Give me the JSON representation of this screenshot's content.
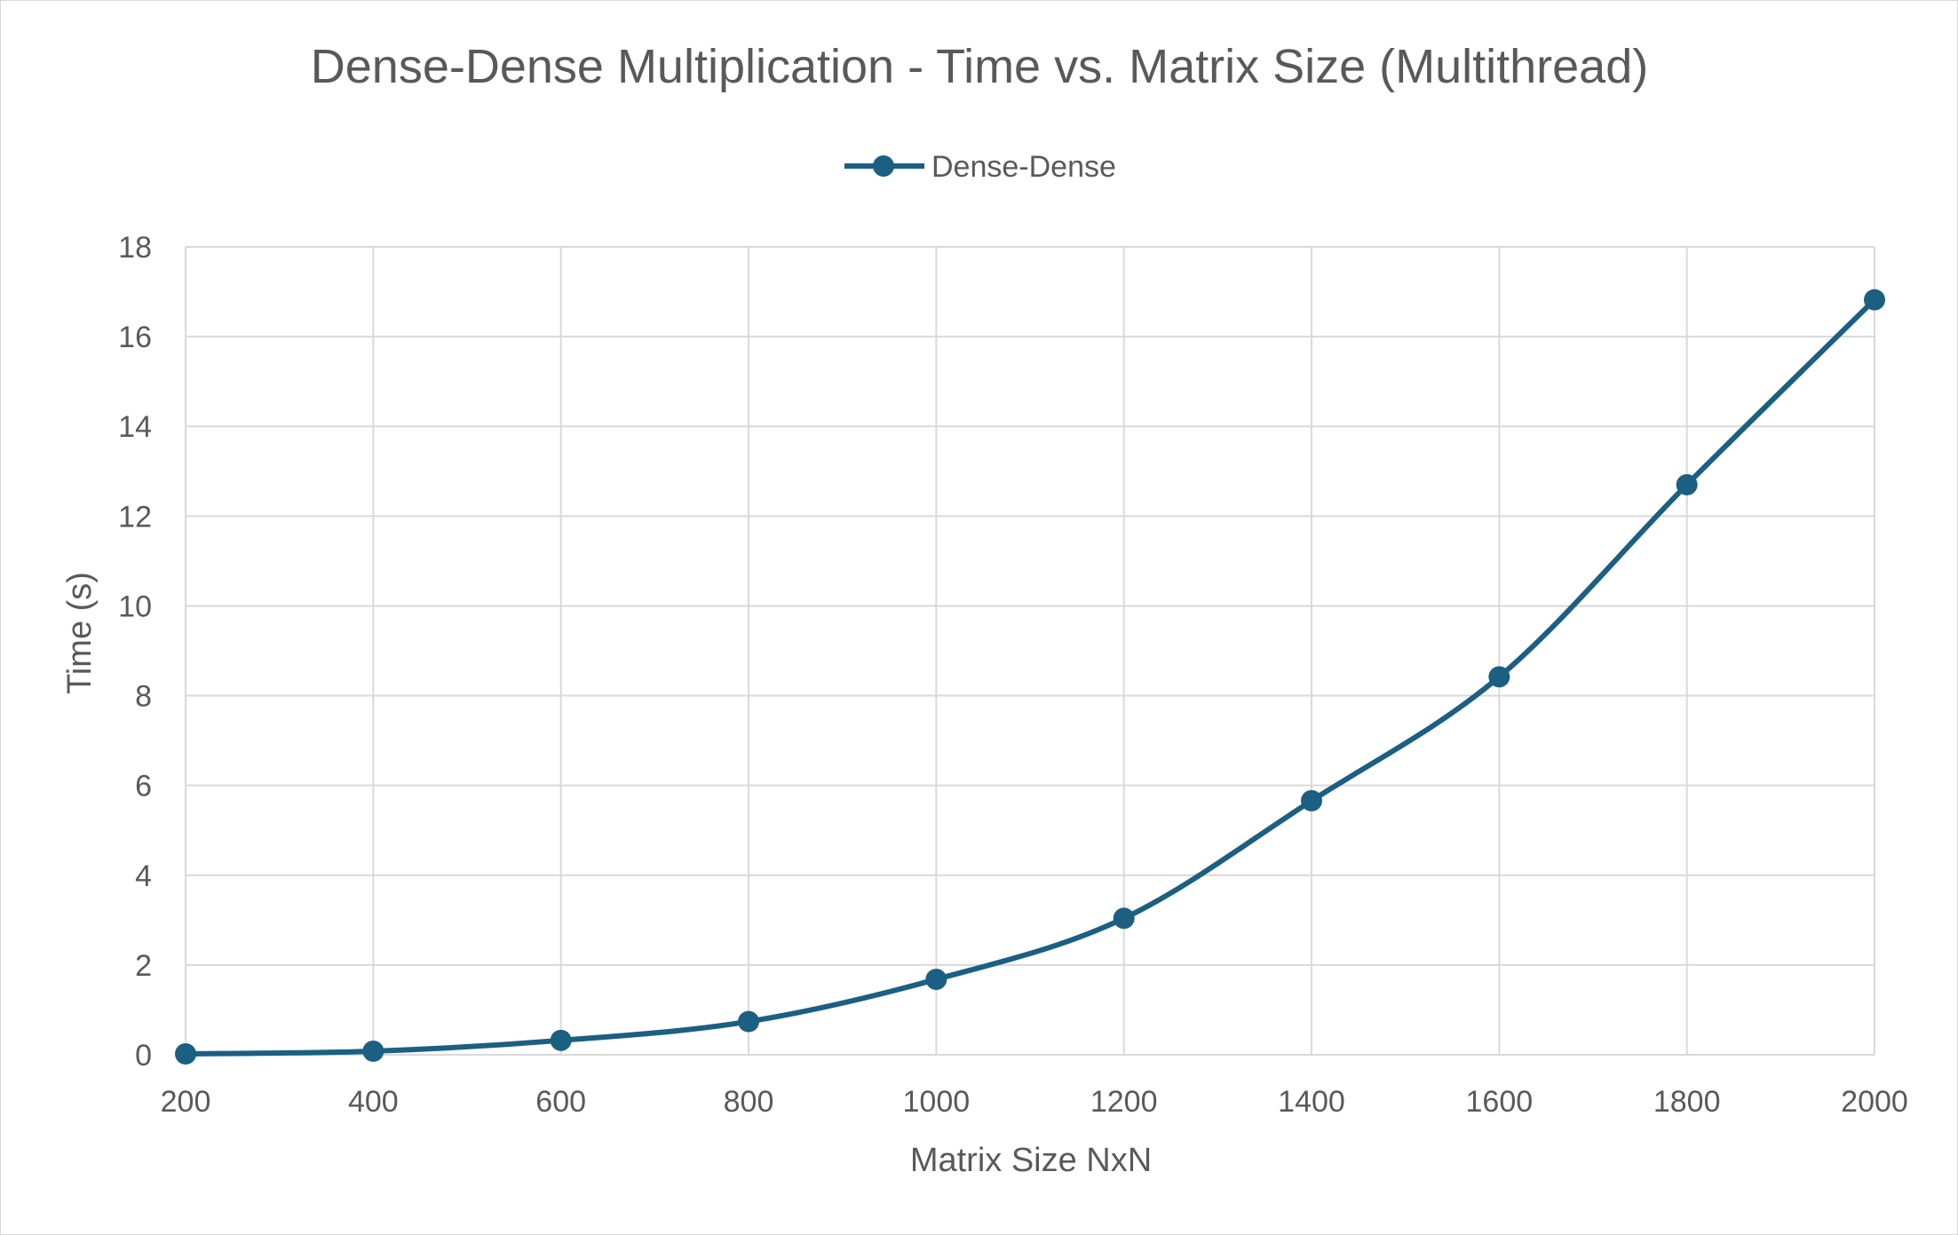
{
  "chart_data": {
    "type": "line",
    "title": "Dense-Dense Multiplication - Time vs. Matrix Size (Multithread)",
    "xlabel": "Matrix Size NxN",
    "ylabel": "Time (s)",
    "x": [
      200,
      400,
      600,
      800,
      1000,
      1200,
      1400,
      1600,
      1800,
      2000
    ],
    "xlim": [
      200,
      2000
    ],
    "ylim": [
      0,
      18
    ],
    "x_ticks": [
      "200",
      "400",
      "600",
      "800",
      "1000",
      "1200",
      "1400",
      "1600",
      "1800",
      "2000"
    ],
    "y_ticks": [
      "0",
      "2",
      "4",
      "6",
      "8",
      "10",
      "12",
      "14",
      "16",
      "18"
    ],
    "grid": true,
    "smooth": true,
    "legend": {
      "position": "top"
    },
    "series": [
      {
        "name": "Dense-Dense",
        "color": "#1b5f82",
        "values": [
          0.02,
          0.08,
          0.32,
          0.74,
          1.68,
          3.04,
          5.66,
          8.42,
          12.7,
          16.82
        ]
      }
    ]
  }
}
